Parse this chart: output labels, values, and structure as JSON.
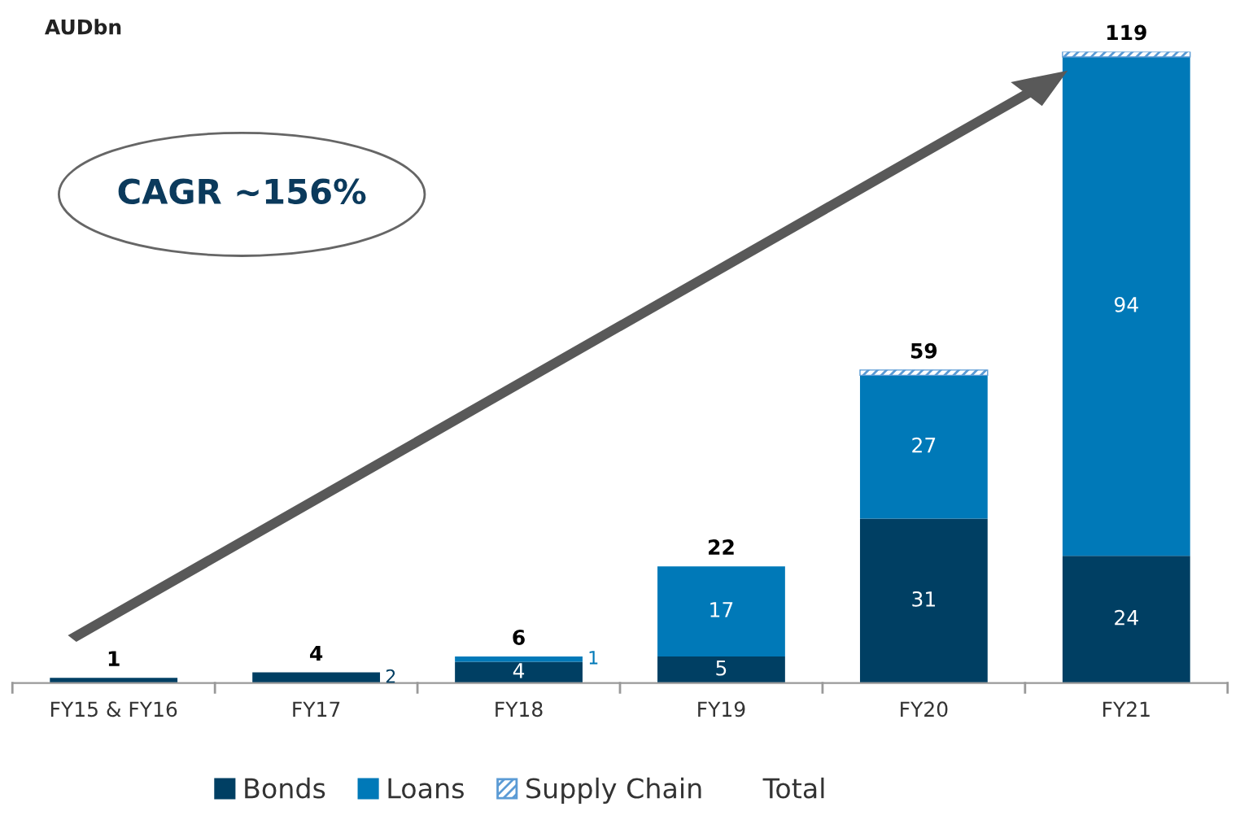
{
  "chart_data": {
    "type": "bar",
    "stacked": true,
    "categories": [
      "FY15 & FY16",
      "FY17",
      "FY18",
      "FY19",
      "FY20",
      "FY21"
    ],
    "series": [
      {
        "name": "Bonds",
        "color": "#003f63",
        "values": [
          1,
          2,
          4,
          5,
          31,
          24
        ],
        "value_labels": [
          null,
          "2",
          "4",
          "5",
          "31",
          "24"
        ]
      },
      {
        "name": "Loans",
        "color": "#0079b8",
        "values": [
          null,
          null,
          1,
          17,
          27,
          94
        ],
        "value_labels": [
          null,
          null,
          "1",
          "17",
          "27",
          "94"
        ]
      },
      {
        "name": "Supply Chain",
        "color": "#5b9bd5",
        "values": [
          null,
          null,
          null,
          null,
          1,
          1
        ]
      }
    ],
    "totals": [
      "1",
      "4",
      "6",
      "22",
      "59",
      "119"
    ],
    "legend": "bottom",
    "grid": false,
    "annotations": [
      "AUDbn",
      "CAGR ~156%",
      "Total"
    ]
  }
}
